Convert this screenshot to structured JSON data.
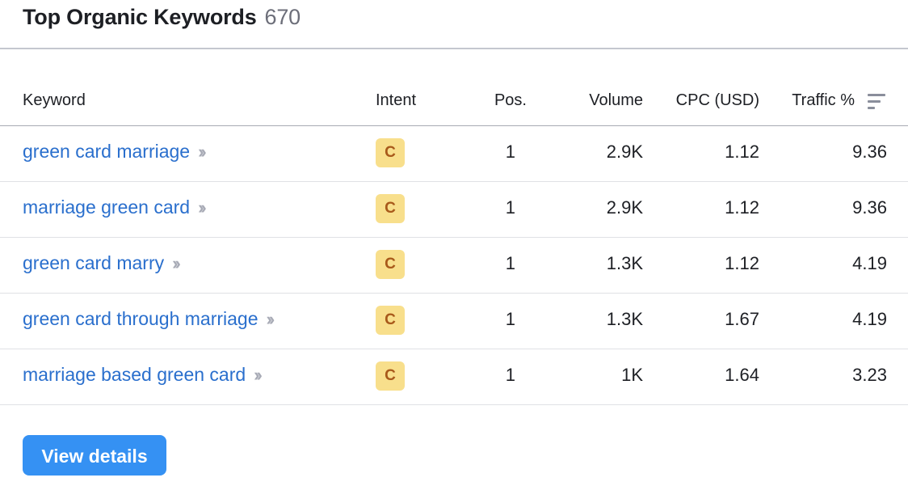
{
  "widget": {
    "title": "Top Organic Keywords",
    "count": "670"
  },
  "table": {
    "headers": {
      "keyword": "Keyword",
      "intent": "Intent",
      "pos": "Pos.",
      "volume": "Volume",
      "cpc": "CPC (USD)",
      "traffic": "Traffic %"
    },
    "sort_icon": "sort-lines-icon",
    "rows": [
      {
        "keyword": "green card marriage",
        "intent": "C",
        "pos": "1",
        "volume": "2.9K",
        "cpc": "1.12",
        "traffic": "9.36"
      },
      {
        "keyword": "marriage green card",
        "intent": "C",
        "pos": "1",
        "volume": "2.9K",
        "cpc": "1.12",
        "traffic": "9.36"
      },
      {
        "keyword": "green card marry",
        "intent": "C",
        "pos": "1",
        "volume": "1.3K",
        "cpc": "1.12",
        "traffic": "4.19"
      },
      {
        "keyword": "green card through marriage",
        "intent": "C",
        "pos": "1",
        "volume": "1.3K",
        "cpc": "1.67",
        "traffic": "4.19"
      },
      {
        "keyword": "marriage based green card",
        "intent": "C",
        "pos": "1",
        "volume": "1K",
        "cpc": "1.64",
        "traffic": "3.23"
      }
    ]
  },
  "actions": {
    "view_details": "View details"
  },
  "colors": {
    "link": "#2a6fcd",
    "intent_badge_bg": "#f8df8c",
    "intent_badge_text": "#a8591a",
    "button": "#3591f3"
  }
}
